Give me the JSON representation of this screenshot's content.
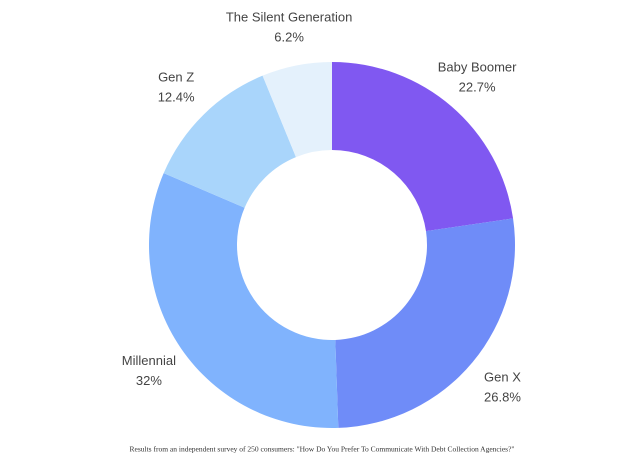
{
  "chart_data": {
    "type": "donut",
    "categories": [
      "Baby Boomer",
      "Gen X",
      "Millennial",
      "Gen Z",
      "The Silent Generation"
    ],
    "values": [
      22.7,
      26.8,
      32,
      12.4,
      6.2
    ],
    "value_labels": [
      "22.7%",
      "26.8%",
      "32%",
      "12.4%",
      "6.2%"
    ],
    "colors": [
      "#8058f1",
      "#6f8cf8",
      "#80b3fd",
      "#a9d5fb",
      "#e4f1fc"
    ],
    "caption": "Results from an independent survey of 250 consumers: \"How Do You Prefer To Communicate With Debt Collection Agencies?\""
  }
}
